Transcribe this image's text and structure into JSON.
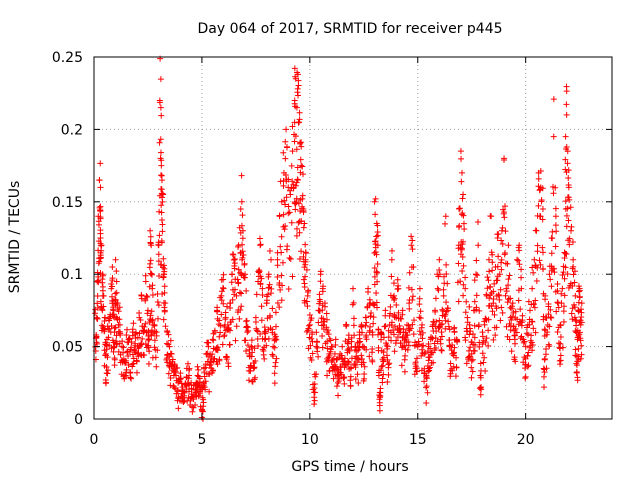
{
  "chart_data": {
    "type": "scatter",
    "title": "Day 064 of 2017, SRMTID for receiver p445",
    "xlabel": "GPS time / hours",
    "ylabel": "SRMTID / TECUs",
    "xlim": [
      0,
      24
    ],
    "ylim": [
      0,
      0.25
    ],
    "xticks": [
      0,
      5,
      10,
      15,
      20
    ],
    "xtick_labels": [
      "0",
      "5",
      "10",
      "15",
      "20"
    ],
    "yticks": [
      0,
      0.05,
      0.1,
      0.15,
      0.2,
      0.25
    ],
    "ytick_labels": [
      "0",
      "0.05",
      "0.1",
      "0.15",
      "0.2",
      "0.25"
    ],
    "grid": true,
    "marker": "+",
    "color": "#ff0000",
    "x_range_of_data": [
      0,
      22.6
    ],
    "series": [
      {
        "name": "SRMTID",
        "points": [
          [
            0.05,
            0.073
          ],
          [
            0.1,
            0.058
          ],
          [
            0.15,
            0.095
          ],
          [
            0.2,
            0.14
          ],
          [
            0.25,
            0.165
          ],
          [
            0.3,
            0.16
          ],
          [
            0.3,
            0.125
          ],
          [
            0.35,
            0.12
          ],
          [
            0.4,
            0.1
          ],
          [
            0.45,
            0.085
          ],
          [
            0.5,
            0.07
          ],
          [
            0.55,
            0.045
          ],
          [
            0.6,
            0.055
          ],
          [
            0.7,
            0.068
          ],
          [
            0.8,
            0.09
          ],
          [
            0.85,
            0.105
          ],
          [
            0.9,
            0.075
          ],
          [
            0.95,
            0.06
          ],
          [
            1.0,
            0.11
          ],
          [
            1.05,
            0.095
          ],
          [
            1.1,
            0.08
          ],
          [
            1.2,
            0.065
          ],
          [
            1.3,
            0.05
          ],
          [
            1.4,
            0.04
          ],
          [
            1.5,
            0.058
          ],
          [
            1.6,
            0.055
          ],
          [
            1.7,
            0.048
          ],
          [
            1.8,
            0.062
          ],
          [
            1.9,
            0.052
          ],
          [
            2.0,
            0.045
          ],
          [
            2.1,
            0.07
          ],
          [
            2.2,
            0.085
          ],
          [
            2.3,
            0.06
          ],
          [
            2.4,
            0.095
          ],
          [
            2.5,
            0.075
          ],
          [
            2.55,
            0.055
          ],
          [
            2.6,
            0.13
          ],
          [
            2.65,
            0.12
          ],
          [
            2.7,
            0.09
          ],
          [
            2.8,
            0.065
          ],
          [
            2.9,
            0.06
          ],
          [
            3.0,
            0.12
          ],
          [
            3.05,
            0.22
          ],
          [
            3.1,
            0.215
          ],
          [
            3.12,
            0.175
          ],
          [
            3.15,
            0.165
          ],
          [
            3.2,
            0.155
          ],
          [
            3.25,
            0.1
          ],
          [
            3.3,
            0.08
          ],
          [
            3.4,
            0.06
          ],
          [
            3.5,
            0.05
          ],
          [
            3.6,
            0.045
          ],
          [
            3.7,
            0.035
          ],
          [
            3.8,
            0.03
          ],
          [
            3.9,
            0.025
          ],
          [
            4.0,
            0.028
          ],
          [
            4.1,
            0.022
          ],
          [
            4.2,
            0.018
          ],
          [
            4.3,
            0.035
          ],
          [
            4.4,
            0.03
          ],
          [
            4.5,
            0.025
          ],
          [
            4.6,
            0.015
          ],
          [
            4.7,
            0.02
          ],
          [
            4.8,
            0.03
          ],
          [
            4.9,
            0.028
          ],
          [
            5.0,
            0.001
          ],
          [
            5.05,
            0.0
          ],
          [
            5.1,
            0.035
          ],
          [
            5.2,
            0.045
          ],
          [
            5.3,
            0.05
          ],
          [
            5.4,
            0.04
          ],
          [
            5.5,
            0.055
          ],
          [
            5.6,
            0.06
          ],
          [
            5.7,
            0.075
          ],
          [
            5.8,
            0.068
          ],
          [
            5.9,
            0.085
          ],
          [
            6.0,
            0.09
          ],
          [
            6.1,
            0.07
          ],
          [
            6.2,
            0.065
          ],
          [
            6.3,
            0.08
          ],
          [
            6.4,
            0.1
          ],
          [
            6.5,
            0.11
          ],
          [
            6.6,
            0.085
          ],
          [
            6.7,
            0.12
          ],
          [
            6.8,
            0.145
          ],
          [
            6.85,
            0.15
          ],
          [
            6.9,
            0.13
          ],
          [
            7.0,
            0.1
          ],
          [
            7.1,
            0.06
          ],
          [
            7.2,
            0.045
          ],
          [
            7.3,
            0.05
          ],
          [
            7.4,
            0.035
          ],
          [
            7.5,
            0.07
          ],
          [
            7.6,
            0.095
          ],
          [
            7.7,
            0.12
          ],
          [
            7.8,
            0.09
          ],
          [
            7.9,
            0.06
          ],
          [
            8.0,
            0.08
          ],
          [
            8.1,
            0.1
          ],
          [
            8.2,
            0.11
          ],
          [
            8.3,
            0.05
          ],
          [
            8.4,
            0.055
          ],
          [
            8.5,
            0.11
          ],
          [
            8.6,
            0.14
          ],
          [
            8.7,
            0.15
          ],
          [
            8.8,
            0.17
          ],
          [
            8.9,
            0.2
          ],
          [
            9.0,
            0.16
          ],
          [
            9.1,
            0.155
          ],
          [
            9.2,
            0.185
          ],
          [
            9.3,
            0.22
          ],
          [
            9.35,
            0.235
          ],
          [
            9.4,
            0.215
          ],
          [
            9.45,
            0.238
          ],
          [
            9.5,
            0.205
          ],
          [
            9.55,
            0.19
          ],
          [
            9.6,
            0.175
          ],
          [
            9.7,
            0.145
          ],
          [
            9.75,
            0.135
          ],
          [
            9.8,
            0.11
          ],
          [
            9.9,
            0.085
          ],
          [
            10.0,
            0.065
          ],
          [
            10.1,
            0.06
          ],
          [
            10.2,
            0.015
          ],
          [
            10.3,
            0.05
          ],
          [
            10.4,
            0.075
          ],
          [
            10.5,
            0.1
          ],
          [
            10.6,
            0.09
          ],
          [
            10.7,
            0.08
          ],
          [
            10.8,
            0.06
          ],
          [
            10.9,
            0.045
          ],
          [
            11.0,
            0.05
          ],
          [
            11.1,
            0.035
          ],
          [
            11.2,
            0.055
          ],
          [
            11.3,
            0.03
          ],
          [
            11.4,
            0.045
          ],
          [
            11.5,
            0.05
          ],
          [
            11.6,
            0.04
          ],
          [
            11.7,
            0.065
          ],
          [
            11.8,
            0.055
          ],
          [
            11.9,
            0.035
          ],
          [
            12.0,
            0.09
          ],
          [
            12.1,
            0.05
          ],
          [
            12.2,
            0.042
          ],
          [
            12.3,
            0.06
          ],
          [
            12.4,
            0.065
          ],
          [
            12.5,
            0.05
          ],
          [
            12.6,
            0.07
          ],
          [
            12.7,
            0.09
          ],
          [
            12.8,
            0.08
          ],
          [
            12.9,
            0.06
          ],
          [
            13.0,
            0.15
          ],
          [
            13.05,
            0.152
          ],
          [
            13.1,
            0.135
          ],
          [
            13.15,
            0.12
          ],
          [
            13.2,
            0.03
          ],
          [
            13.25,
            0.015
          ],
          [
            13.3,
            0.06
          ],
          [
            13.4,
            0.04
          ],
          [
            13.5,
            0.075
          ],
          [
            13.6,
            0.05
          ],
          [
            13.7,
            0.065
          ],
          [
            13.8,
            0.11
          ],
          [
            13.9,
            0.085
          ],
          [
            14.0,
            0.07
          ],
          [
            14.1,
            0.09
          ],
          [
            14.2,
            0.06
          ],
          [
            14.3,
            0.075
          ],
          [
            14.4,
            0.055
          ],
          [
            14.5,
            0.065
          ],
          [
            14.6,
            0.08
          ],
          [
            14.7,
            0.12
          ],
          [
            14.8,
            0.105
          ],
          [
            14.9,
            0.035
          ],
          [
            15.0,
            0.05
          ],
          [
            15.1,
            0.09
          ],
          [
            15.2,
            0.065
          ],
          [
            15.3,
            0.045
          ],
          [
            15.4,
            0.03
          ],
          [
            15.5,
            0.05
          ],
          [
            15.6,
            0.055
          ],
          [
            15.7,
            0.065
          ],
          [
            15.8,
            0.075
          ],
          [
            15.9,
            0.1
          ],
          [
            16.0,
            0.11
          ],
          [
            16.1,
            0.06
          ],
          [
            16.2,
            0.085
          ],
          [
            16.3,
            0.14
          ],
          [
            16.4,
            0.075
          ],
          [
            16.5,
            0.05
          ],
          [
            16.6,
            0.045
          ],
          [
            16.7,
            0.06
          ],
          [
            16.8,
            0.055
          ],
          [
            16.9,
            0.12
          ],
          [
            17.0,
            0.185
          ],
          [
            17.05,
            0.17
          ],
          [
            17.1,
            0.155
          ],
          [
            17.2,
            0.09
          ],
          [
            17.3,
            0.07
          ],
          [
            17.4,
            0.065
          ],
          [
            17.5,
            0.045
          ],
          [
            17.6,
            0.075
          ],
          [
            17.7,
            0.1
          ],
          [
            17.8,
            0.12
          ],
          [
            17.9,
            0.03
          ],
          [
            18.0,
            0.06
          ],
          [
            18.1,
            0.065
          ],
          [
            18.2,
            0.085
          ],
          [
            18.3,
            0.11
          ],
          [
            18.4,
            0.14
          ],
          [
            18.5,
            0.08
          ],
          [
            18.6,
            0.105
          ],
          [
            18.7,
            0.125
          ],
          [
            18.8,
            0.1
          ],
          [
            18.9,
            0.13
          ],
          [
            19.0,
            0.18
          ],
          [
            19.1,
            0.09
          ],
          [
            19.2,
            0.12
          ],
          [
            19.3,
            0.07
          ],
          [
            19.4,
            0.08
          ],
          [
            19.5,
            0.055
          ],
          [
            19.6,
            0.11
          ],
          [
            19.7,
            0.12
          ],
          [
            19.8,
            0.09
          ],
          [
            19.9,
            0.055
          ],
          [
            20.0,
            0.05
          ],
          [
            20.1,
            0.065
          ],
          [
            20.2,
            0.075
          ],
          [
            20.3,
            0.09
          ],
          [
            20.4,
            0.11
          ],
          [
            20.5,
            0.13
          ],
          [
            20.6,
            0.17
          ],
          [
            20.7,
            0.16
          ],
          [
            20.8,
            0.145
          ],
          [
            20.85,
            0.022
          ],
          [
            20.9,
            0.085
          ],
          [
            21.0,
            0.06
          ],
          [
            21.1,
            0.1
          ],
          [
            21.2,
            0.125
          ],
          [
            21.3,
            0.195
          ],
          [
            21.4,
            0.14
          ],
          [
            21.5,
            0.08
          ],
          [
            21.6,
            0.065
          ],
          [
            21.7,
            0.09
          ],
          [
            21.8,
            0.115
          ],
          [
            21.85,
            0.195
          ],
          [
            21.9,
            0.21
          ],
          [
            21.95,
            0.185
          ],
          [
            22.0,
            0.16
          ],
          [
            22.1,
            0.13
          ],
          [
            22.2,
            0.11
          ],
          [
            22.3,
            0.085
          ],
          [
            22.35,
            0.06
          ],
          [
            22.4,
            0.055
          ],
          [
            22.45,
            0.075
          ],
          [
            22.5,
            0.09
          ],
          [
            22.55,
            0.065
          ],
          [
            22.6,
            0.08
          ]
        ]
      }
    ]
  }
}
